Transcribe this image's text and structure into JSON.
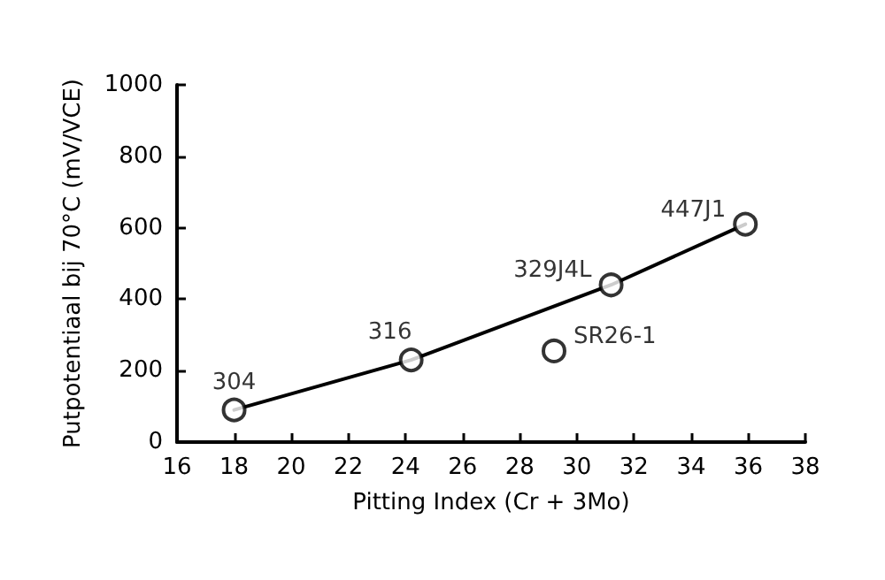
{
  "chart_data": {
    "type": "scatter",
    "xlabel": "Pitting Index (Cr + 3Mo)",
    "ylabel": "Putpotentiaal bij 70°C (mV/VCE)",
    "x": [
      18,
      24.2,
      29.2,
      31.2,
      35.9
    ],
    "series": [
      {
        "type": "line",
        "marker": "none",
        "color": "#000000",
        "x": [
          18,
          24.2,
          31.2,
          35.9
        ],
        "values": [
          90,
          230,
          440,
          610
        ]
      },
      {
        "color": "#000000",
        "values": [
          90,
          230,
          255,
          440,
          610
        ]
      }
    ],
    "annotations": [
      {
        "text": "304",
        "x": 18,
        "y": 90
      },
      {
        "text": "316",
        "x": 24.2,
        "y": 230
      },
      {
        "text": "SR26-1",
        "x": 29.2,
        "y": 255
      },
      {
        "text": "329J4L",
        "x": 31.2,
        "y": 440
      },
      {
        "text": "447J1",
        "x": 35.9,
        "y": 610
      }
    ],
    "xlim": [
      16,
      38
    ],
    "xticks": [
      16,
      18,
      20,
      22,
      24,
      26,
      28,
      30,
      32,
      34,
      36,
      38
    ],
    "ylim": [
      0,
      1000
    ],
    "yticks": [
      0,
      200,
      400,
      600,
      800,
      1000
    ],
    "grid": false,
    "marker": "circle",
    "line_style": "solid"
  }
}
